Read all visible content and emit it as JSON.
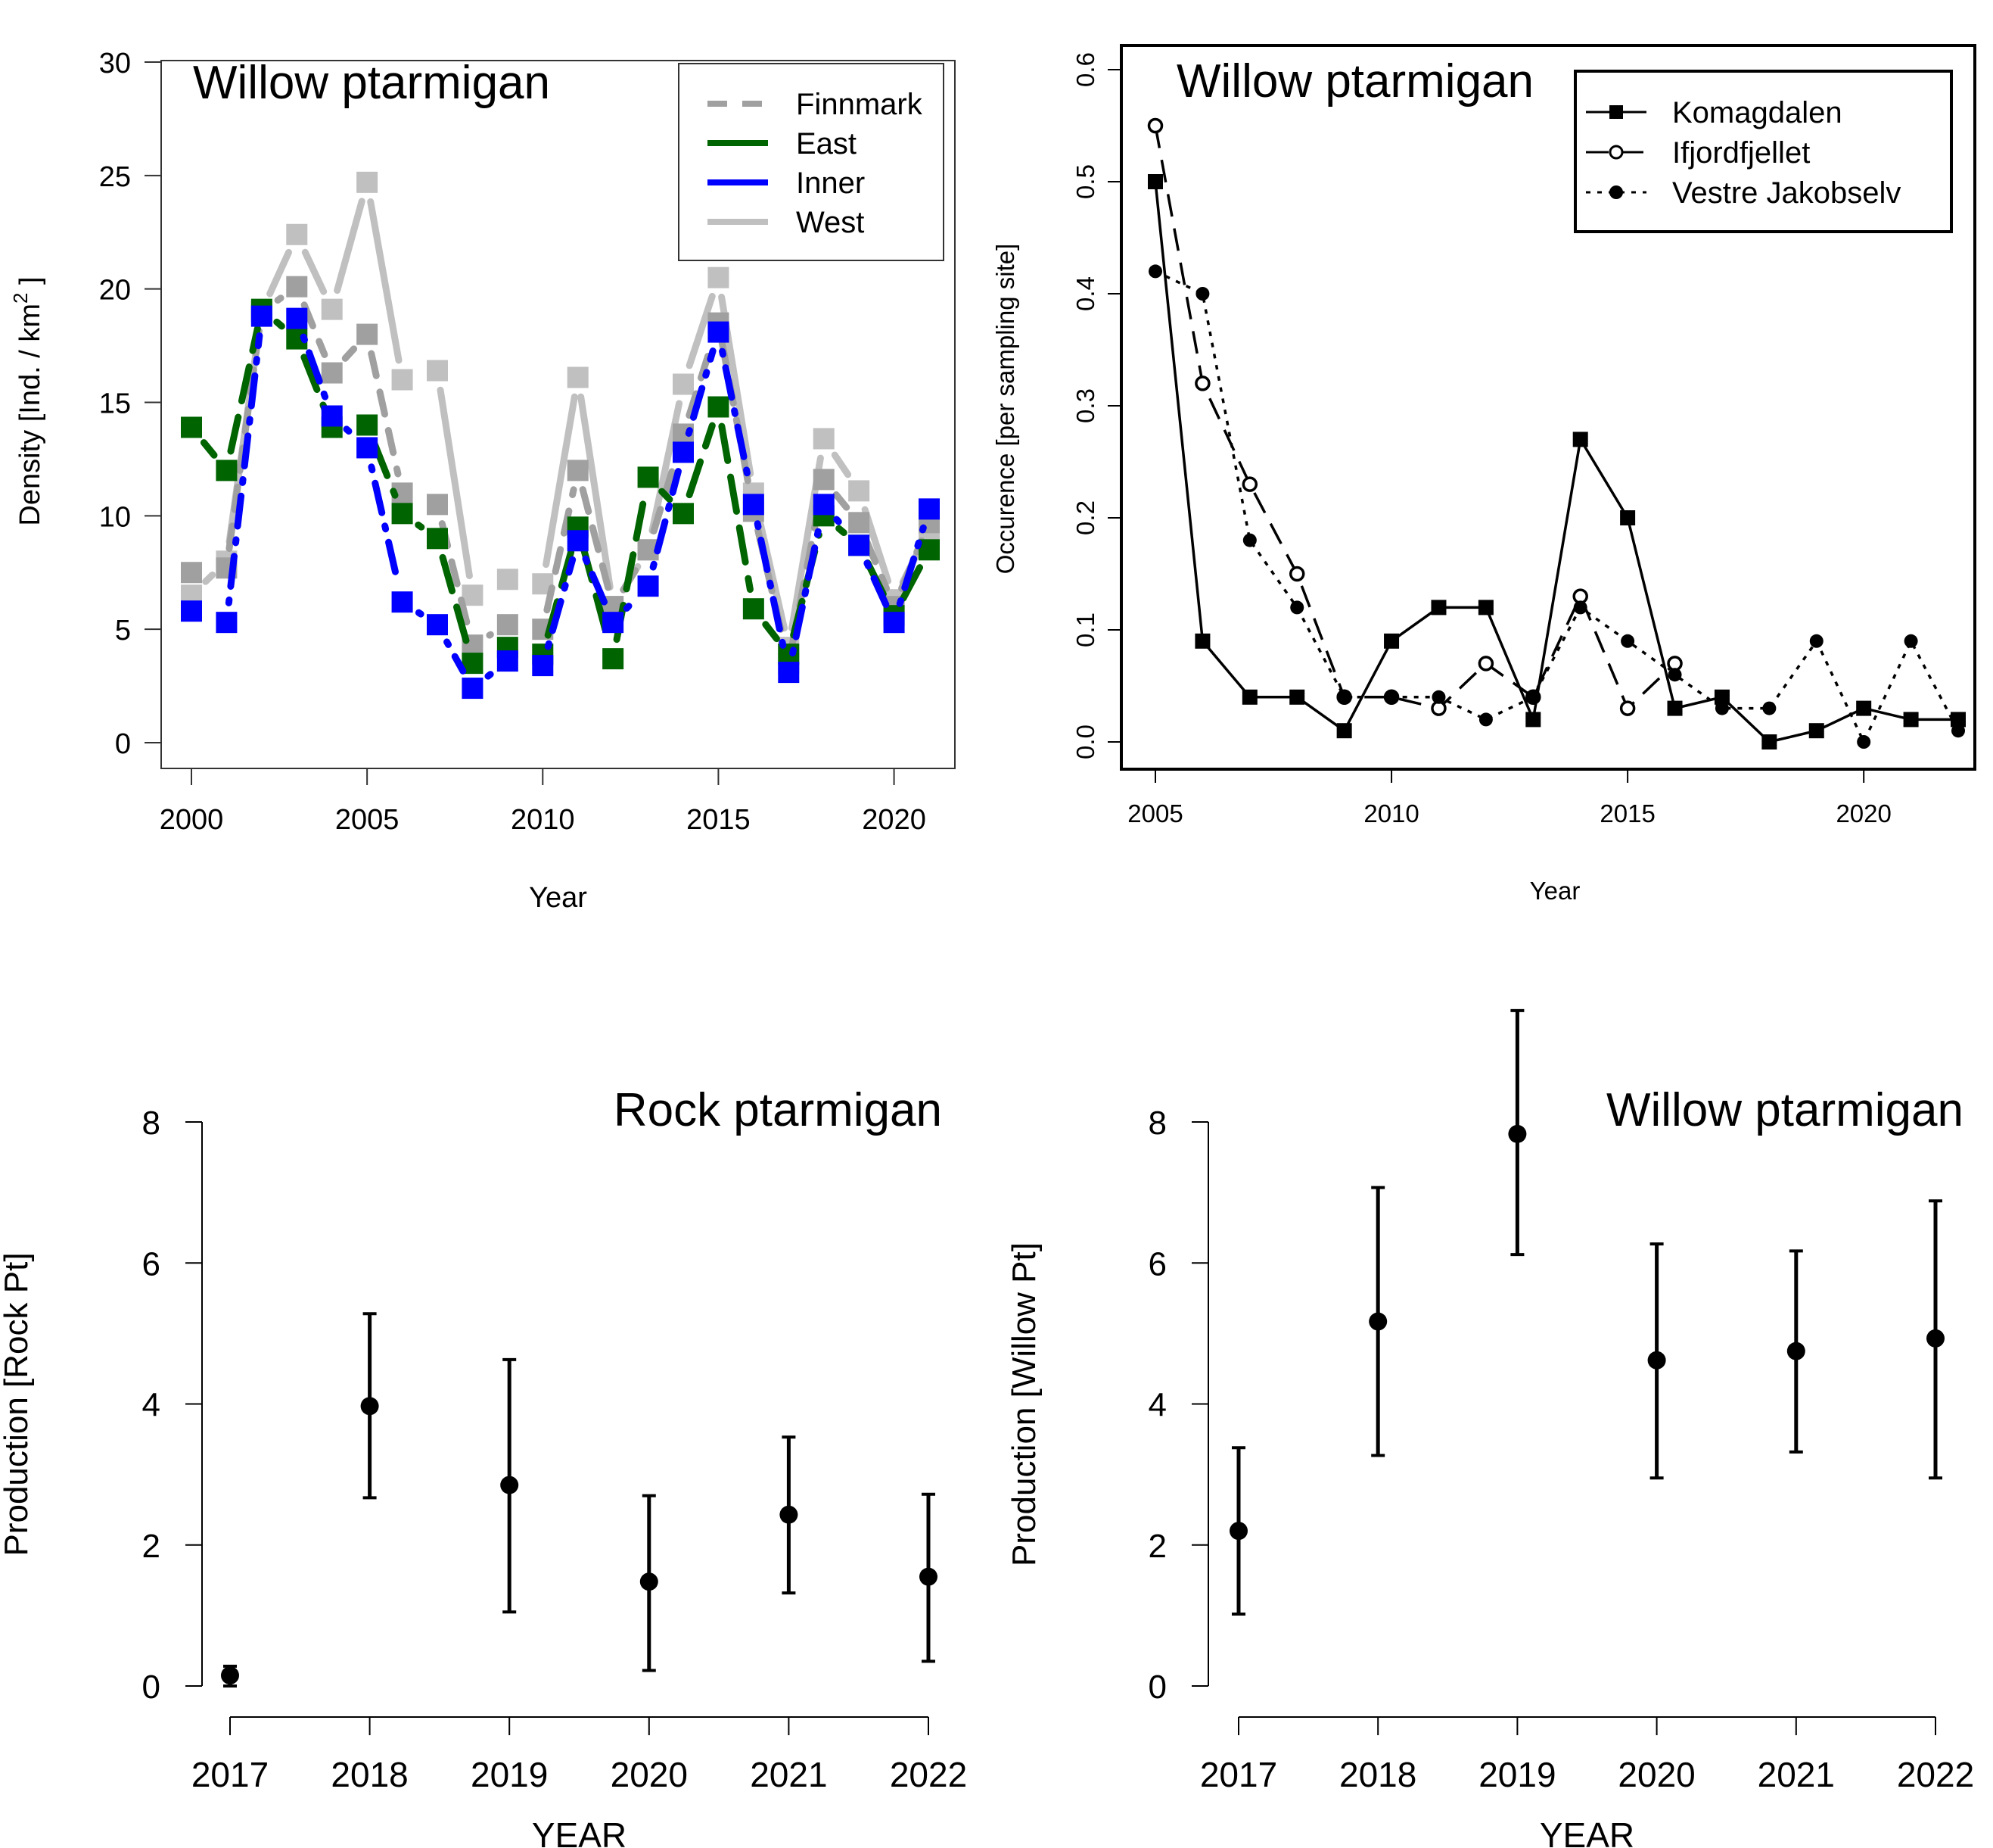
{
  "chart_data": [
    {
      "id": "density",
      "type": "line",
      "title": "Willow ptarmigan",
      "xlabel": "Year",
      "ylabel": "Density [Ind. / km",
      "ylabel_sup": "2",
      "ylabel_end": " ]",
      "xlim": [
        2000,
        2021
      ],
      "ylim": [
        0,
        30
      ],
      "xticks": [
        2000,
        2005,
        2010,
        2015,
        2020
      ],
      "yticks": [
        0,
        5,
        10,
        15,
        20,
        25,
        30
      ],
      "legend_position": "top-right",
      "x": [
        2000,
        2001,
        2002,
        2003,
        2004,
        2005,
        2006,
        2007,
        2008,
        2009,
        2010,
        2011,
        2012,
        2013,
        2014,
        2015,
        2016,
        2017,
        2018,
        2019,
        2020,
        2021
      ],
      "series": [
        {
          "name": "West",
          "color": "#c0c0c0",
          "dash": "solid",
          "values": [
            6.5,
            8.0,
            19.0,
            22.4,
            19.1,
            24.7,
            16.0,
            16.4,
            6.5,
            7.2,
            7.0,
            16.1,
            6.0,
            8.5,
            15.8,
            20.5,
            11.0,
            4.2,
            13.4,
            11.1,
            6.3,
            9.4
          ]
        },
        {
          "name": "Finnmark",
          "color": "#a0a0a0",
          "dash": "dashed",
          "values": [
            7.5,
            7.7,
            19.0,
            20.1,
            16.3,
            18.0,
            11.0,
            10.5,
            4.3,
            5.2,
            5.0,
            12.0,
            6.0,
            8.5,
            13.6,
            18.5,
            10.2,
            3.5,
            11.6,
            9.7,
            6.0,
            9.7
          ]
        },
        {
          "name": "East",
          "color": "#006400",
          "dash": "longdash",
          "values": [
            13.9,
            12.0,
            19.1,
            17.8,
            13.9,
            14.0,
            10.1,
            9.0,
            3.5,
            4.2,
            3.9,
            9.5,
            3.7,
            11.7,
            10.1,
            14.8,
            5.9,
            3.9,
            10.0,
            8.7,
            5.6,
            8.5
          ]
        },
        {
          "name": "Inner",
          "color": "#0000ff",
          "dash": "dotdash",
          "values": [
            5.8,
            5.3,
            18.8,
            18.7,
            14.4,
            13.0,
            6.2,
            5.2,
            2.4,
            3.6,
            3.4,
            8.9,
            5.3,
            6.9,
            12.8,
            18.1,
            10.5,
            3.1,
            10.5,
            8.7,
            5.3,
            10.3
          ]
        }
      ],
      "legend_order": [
        "Finnmark",
        "East",
        "Inner",
        "West"
      ]
    },
    {
      "id": "occurrence",
      "type": "line",
      "title": "Willow ptarmigan",
      "xlabel": "Year",
      "ylabel": "Occurence [per sampling site]",
      "xlim": [
        2005,
        2022
      ],
      "ylim": [
        0,
        0.6
      ],
      "xticks": [
        2005,
        2010,
        2015,
        2020
      ],
      "yticks": [
        "0.0",
        "0.1",
        "0.2",
        "0.3",
        "0.4",
        "0.5",
        "0.6"
      ],
      "legend_position": "top-right",
      "series": [
        {
          "name": "Komagdalen",
          "marker": "filled-square",
          "dash": "solid",
          "x": [
            2005,
            2006,
            2007,
            2008,
            2009,
            2010,
            2011,
            2012,
            2013,
            2014,
            2015,
            2016,
            2017,
            2018,
            2019,
            2020,
            2021,
            2022
          ],
          "values": [
            0.5,
            0.09,
            0.04,
            0.04,
            0.01,
            0.09,
            0.12,
            0.12,
            0.02,
            0.27,
            0.2,
            0.03,
            0.04,
            0.0,
            0.01,
            0.03,
            0.02,
            0.02
          ]
        },
        {
          "name": "Ifjordfjellet",
          "marker": "open-circle",
          "dash": "dashed",
          "x": [
            2005,
            2006,
            2007,
            2008,
            2009,
            2010,
            2011,
            2012,
            2013,
            2014,
            2015,
            2016
          ],
          "values": [
            0.55,
            0.32,
            0.23,
            0.15,
            0.04,
            0.04,
            0.03,
            0.07,
            0.04,
            0.13,
            0.03,
            0.07
          ]
        },
        {
          "name": "Vestre Jakobselv",
          "marker": "filled-circle",
          "dash": "dotted",
          "x": [
            2005,
            2006,
            2007,
            2008,
            2009,
            2010,
            2011,
            2012,
            2013,
            2014,
            2015,
            2016,
            2017,
            2018,
            2019,
            2020,
            2021,
            2022
          ],
          "values": [
            0.42,
            0.4,
            0.18,
            0.12,
            0.04,
            0.04,
            0.04,
            0.02,
            0.04,
            0.12,
            0.09,
            0.06,
            0.03,
            0.03,
            0.09,
            0.0,
            0.09,
            0.01
          ]
        }
      ]
    },
    {
      "id": "rock-production",
      "type": "scatter",
      "title": "Rock ptarmigan",
      "xlabel": "YEAR",
      "ylabel": "Production [Rock Pt]",
      "ylim": [
        0,
        8
      ],
      "yticks": [
        0,
        2,
        4,
        6,
        8
      ],
      "categories": [
        "2017",
        "2018",
        "2019",
        "2020",
        "2021",
        "2022"
      ],
      "values": [
        0.15,
        3.97,
        2.85,
        1.48,
        2.43,
        1.55
      ],
      "lower": [
        0.0,
        2.67,
        1.05,
        0.22,
        1.32,
        0.35
      ],
      "upper": [
        0.28,
        5.28,
        4.63,
        2.7,
        3.53,
        2.72
      ]
    },
    {
      "id": "willow-production",
      "type": "scatter",
      "title": "Willow ptarmigan",
      "xlabel": "YEAR",
      "ylabel": "Production [Willow Pt]",
      "ylim": [
        0,
        8
      ],
      "yticks": [
        0,
        2,
        4,
        6,
        8
      ],
      "categories": [
        "2017",
        "2018",
        "2019",
        "2020",
        "2021",
        "2022"
      ],
      "values": [
        2.2,
        5.17,
        7.83,
        4.62,
        4.75,
        4.93
      ],
      "lower": [
        1.02,
        3.27,
        6.12,
        2.95,
        3.32,
        2.95
      ],
      "upper": [
        3.38,
        7.07,
        9.58,
        6.27,
        6.17,
        6.88
      ]
    }
  ]
}
